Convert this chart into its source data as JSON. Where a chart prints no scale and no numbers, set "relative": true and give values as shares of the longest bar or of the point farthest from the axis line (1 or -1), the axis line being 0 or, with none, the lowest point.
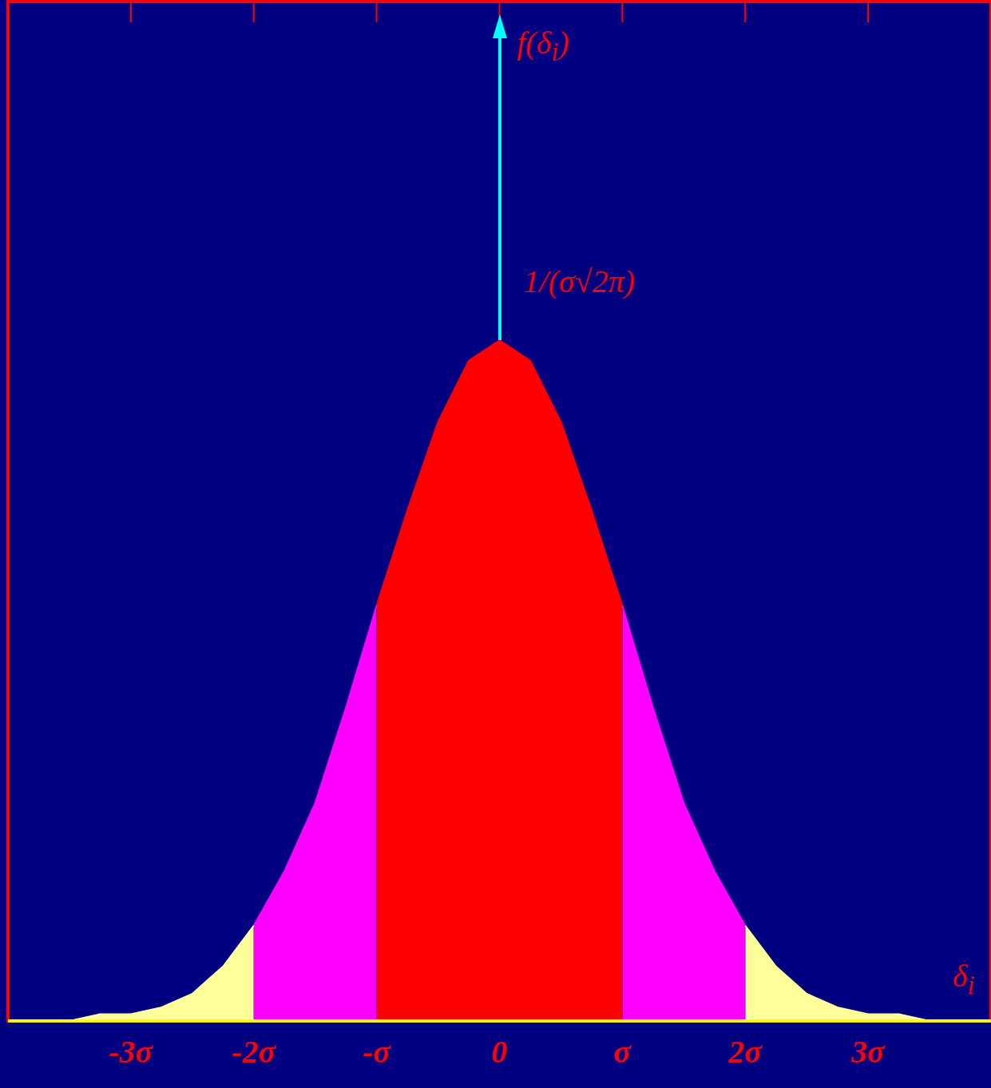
{
  "chart_data": {
    "type": "area",
    "relative": true,
    "xlabel": "δ$_{i}$",
    "annotations": [
      "f(δ$_{i}$)",
      {
        "text": "1/(σ√2π)",
        "x": 0,
        "y": 1
      }
    ],
    "xlim": [
      -4,
      4
    ],
    "xticks": [
      {
        "value": -3,
        "label": "-3σ"
      },
      {
        "value": -2,
        "label": "-2σ"
      },
      {
        "value": -1,
        "label": "-σ"
      },
      {
        "value": 0,
        "label": "0"
      },
      {
        "value": 1,
        "label": "σ"
      },
      {
        "value": 2,
        "label": "2σ"
      },
      {
        "value": 3,
        "label": "3σ"
      }
    ],
    "grid": false,
    "legend": false,
    "tick_labels": "x",
    "series": [
      {
        "color": "#ffff99",
        "x": [
          -4,
          -3.75,
          -3.5,
          -3.25,
          -3,
          -2.75,
          -2.5,
          -2.25,
          -2
        ],
        "values": [
          0,
          0,
          0,
          0.01,
          0.01,
          0.02,
          0.04,
          0.08,
          0.14
        ]
      },
      {
        "color": "#ff00ff",
        "x": [
          -2,
          -1.75,
          -1.5,
          -1.25,
          -1
        ],
        "values": [
          0.14,
          0.22,
          0.32,
          0.46,
          0.61
        ]
      },
      {
        "color": "#ff0000",
        "x": [
          -1,
          -0.75,
          -0.5,
          -0.25,
          0,
          0.25,
          0.5,
          0.75,
          1
        ],
        "values": [
          0.61,
          0.75,
          0.88,
          0.97,
          1,
          0.97,
          0.88,
          0.75,
          0.61
        ]
      },
      {
        "color": "#ff00ff",
        "x": [
          1,
          1.25,
          1.5,
          1.75,
          2
        ],
        "values": [
          0.61,
          0.46,
          0.32,
          0.22,
          0.14
        ]
      },
      {
        "color": "#ffff99",
        "x": [
          2,
          2.25,
          2.5,
          2.75,
          3,
          3.25,
          3.5,
          3.75,
          4
        ],
        "values": [
          0.14,
          0.08,
          0.04,
          0.02,
          0.01,
          0.01,
          0,
          0,
          0
        ]
      }
    ]
  }
}
